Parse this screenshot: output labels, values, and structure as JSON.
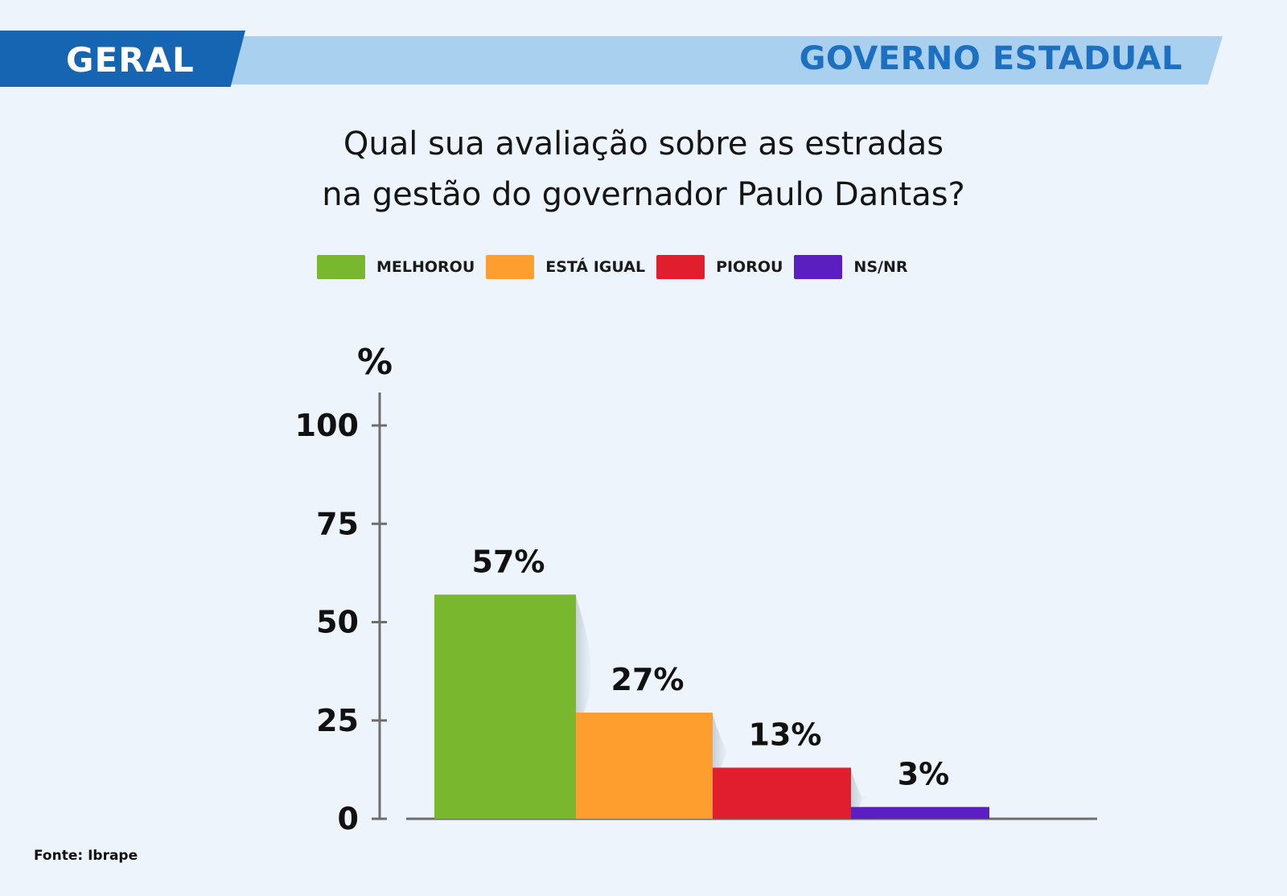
{
  "header": {
    "left_label": "GERAL",
    "right_label": "GOVERNO ESTADUAL",
    "colors": {
      "dark": "#1565b3",
      "light": "#a9d0ef",
      "right_text": "#1d6fc0"
    }
  },
  "title_lines": [
    "Qual sua avaliação sobre as estradas",
    "na gestão do governador Paulo Dantas?"
  ],
  "source": "Fonte: Ibrape",
  "chart_data": {
    "type": "bar",
    "title": "Qual sua avaliação sobre as estradas na gestão do governador Paulo Dantas?",
    "xlabel": "",
    "ylabel": "%",
    "ylim": [
      0,
      100
    ],
    "yticks": [
      "0",
      "25",
      "50",
      "75",
      "100"
    ],
    "categories": [
      "MELHOROU",
      "ESTÁ IGUAL",
      "PIOROU",
      "NS/NR"
    ],
    "values": [
      57,
      27,
      13,
      3
    ],
    "value_labels": [
      "57%",
      "27%",
      "13%",
      "3%"
    ],
    "colors": [
      "#78b72e",
      "#fe9e2e",
      "#e01e2e",
      "#5b1ec0"
    ],
    "legend": "top",
    "grid": false
  }
}
